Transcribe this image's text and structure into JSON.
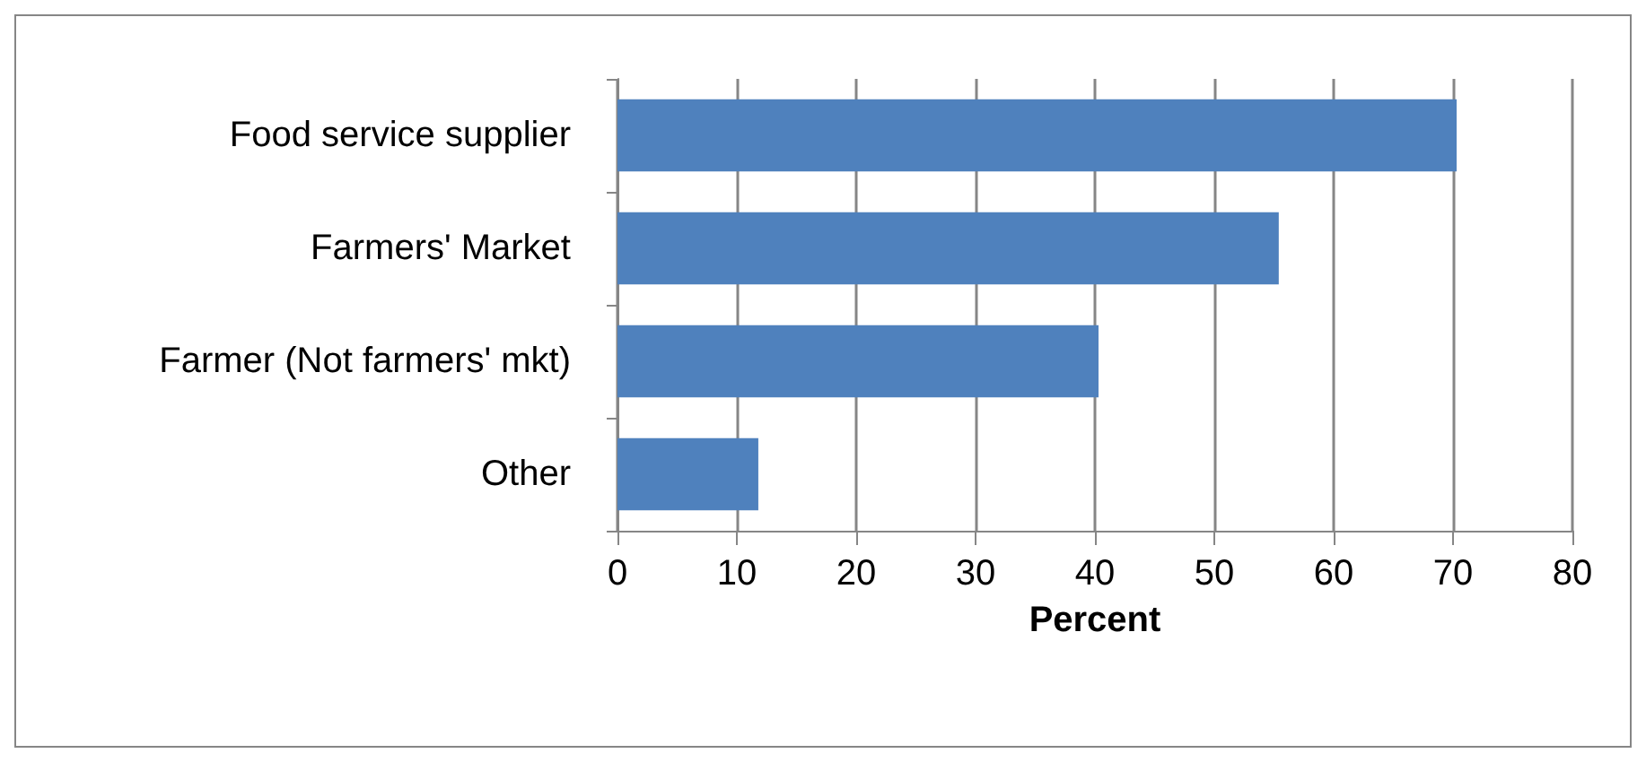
{
  "chart_data": {
    "type": "bar",
    "orientation": "horizontal",
    "xlabel": "Percent",
    "categories": [
      "Food service supplier",
      "Farmers' Market",
      "Farmer (Not farmers' mkt)",
      "Other"
    ],
    "values": [
      70.3,
      55.4,
      40.3,
      11.8
    ],
    "color": "#4f81bd",
    "xlim": [
      0,
      80
    ],
    "xticks": [
      0,
      10,
      20,
      30,
      40,
      50,
      60,
      70,
      80
    ],
    "grid": "x"
  }
}
